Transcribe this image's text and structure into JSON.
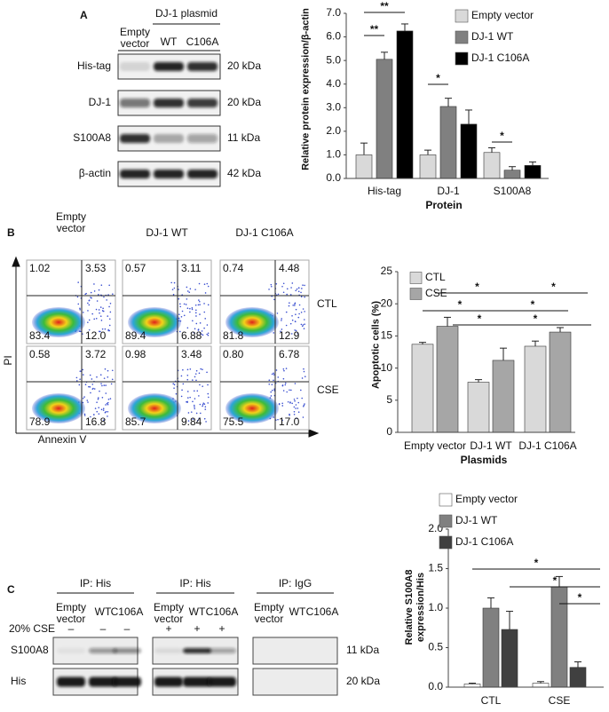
{
  "panel_labels": [
    "A",
    "B",
    "C"
  ],
  "blot_a": {
    "group_header": "DJ-1 plasmid",
    "lanes": [
      "Empty vector",
      "WT",
      "C106A"
    ],
    "rows": [
      {
        "label": "His-tag",
        "size": "20 kDa"
      },
      {
        "label": "DJ-1",
        "size": "20 kDa"
      },
      {
        "label": "S100A8",
        "size": "11 kDa"
      },
      {
        "label": "β-actin",
        "size": "42 kDa"
      }
    ]
  },
  "flow_b": {
    "columns": [
      "Empty vector",
      "DJ-1 WT",
      "DJ-1 C106A"
    ],
    "rows": [
      "CTL",
      "CSE"
    ],
    "y_label": "PI",
    "x_label": "Annexin V",
    "quadrants": [
      [
        [
          "1.02",
          "3.53",
          "83.4",
          "12.0"
        ],
        [
          "0.57",
          "3.11",
          "89.4",
          "6.88"
        ],
        [
          "0.74",
          "4.48",
          "81.8",
          "12.9"
        ]
      ],
      [
        [
          "0.58",
          "3.72",
          "78.9",
          "16.8"
        ],
        [
          "0.98",
          "3.48",
          "85.7",
          "9.84"
        ],
        [
          "0.80",
          "6.78",
          "75.5",
          "17.0"
        ]
      ]
    ]
  },
  "blot_c": {
    "cse_label": "20% CSE",
    "groups": [
      {
        "title": "IP: His",
        "lanes": [
          "Empty vector",
          "WT",
          "C106A"
        ],
        "cse": [
          "–",
          "–",
          "–"
        ]
      },
      {
        "title": "IP: His",
        "lanes": [
          "Empty vector",
          "WT",
          "C106A"
        ],
        "cse": [
          "+",
          "+",
          "+"
        ]
      },
      {
        "title": "IP: IgG",
        "lanes": [
          "Empty vector",
          "WT",
          "C106A"
        ]
      }
    ],
    "rows": [
      {
        "label": "S100A8",
        "size": "11 kDa"
      },
      {
        "label": "His",
        "size": "20 kDa"
      }
    ]
  },
  "chart_data": [
    {
      "type": "bar",
      "ylabel": "Relative protein expression/β-actin",
      "xlabel": "Protein",
      "categories": [
        "His-tag",
        "DJ-1",
        "S100A8"
      ],
      "series": [
        {
          "name": "Empty vector",
          "color": "#d9d9d9",
          "values": [
            1.0,
            1.0,
            1.1
          ],
          "errors": [
            0.5,
            0.2,
            0.2
          ]
        },
        {
          "name": "DJ-1 WT",
          "color": "#808080",
          "values": [
            5.05,
            3.05,
            0.35
          ],
          "errors": [
            0.3,
            0.35,
            0.15
          ]
        },
        {
          "name": "DJ-1 C106A",
          "color": "#000000",
          "values": [
            6.25,
            2.3,
            0.55
          ],
          "errors": [
            0.3,
            0.6,
            0.15
          ]
        }
      ],
      "ylim": [
        0,
        7
      ],
      "yticks": [
        {
          "value": 0,
          "label": "0.0"
        },
        {
          "value": 1,
          "label": "1.0"
        },
        {
          "value": 2,
          "label": "2.0"
        },
        {
          "value": 3,
          "label": "3.0"
        },
        {
          "value": 4,
          "label": "4.0"
        },
        {
          "value": 5,
          "label": "5.0"
        },
        {
          "value": 6,
          "label": "6.0"
        },
        {
          "value": 7,
          "label": "7.0"
        }
      ],
      "legend": "top-right",
      "significance": [
        "**",
        "**",
        "*",
        "*"
      ]
    },
    {
      "type": "bar",
      "ylabel": "Apoptotic cells (%)",
      "xlabel": "Plasmids",
      "categories": [
        "Empty vector",
        "DJ-1 WT",
        "DJ-1 C106A"
      ],
      "series": [
        {
          "name": "CTL",
          "color": "#d9d9d9",
          "values": [
            13.7,
            7.8,
            13.4
          ],
          "errors": [
            0.3,
            0.4,
            0.8
          ]
        },
        {
          "name": "CSE",
          "color": "#a6a6a6",
          "values": [
            16.5,
            11.2,
            15.6
          ],
          "errors": [
            1.4,
            1.9,
            0.7
          ]
        }
      ],
      "ylim": [
        0,
        25
      ],
      "yticks": [
        0,
        5,
        10,
        15,
        20,
        25
      ],
      "legend": "top-left",
      "significance": [
        "*",
        "*",
        "*",
        "*",
        "*",
        "*"
      ]
    },
    {
      "type": "bar",
      "ylabel": "Relative S100A8 expression/His",
      "categories": [
        "CTL",
        "CSE"
      ],
      "series": [
        {
          "name": "Empty vector",
          "color": "#ffffff",
          "values": [
            0.04,
            0.05
          ],
          "errors": [
            0.01,
            0.02
          ]
        },
        {
          "name": "DJ-1 WT",
          "color": "#808080",
          "values": [
            1.0,
            1.27
          ],
          "errors": [
            0.13,
            0.13
          ]
        },
        {
          "name": "DJ-1 C106A",
          "color": "#404040",
          "values": [
            0.73,
            0.25
          ],
          "errors": [
            0.23,
            0.07
          ]
        }
      ],
      "ylim": [
        0,
        2
      ],
      "yticks": [
        {
          "value": 0,
          "label": "0.0"
        },
        0.5,
        {
          "value": 1,
          "label": "1.0"
        },
        1.5,
        {
          "value": 2,
          "label": "2.0"
        }
      ],
      "legend": "above",
      "significance": [
        "*",
        "*",
        "*"
      ]
    }
  ]
}
